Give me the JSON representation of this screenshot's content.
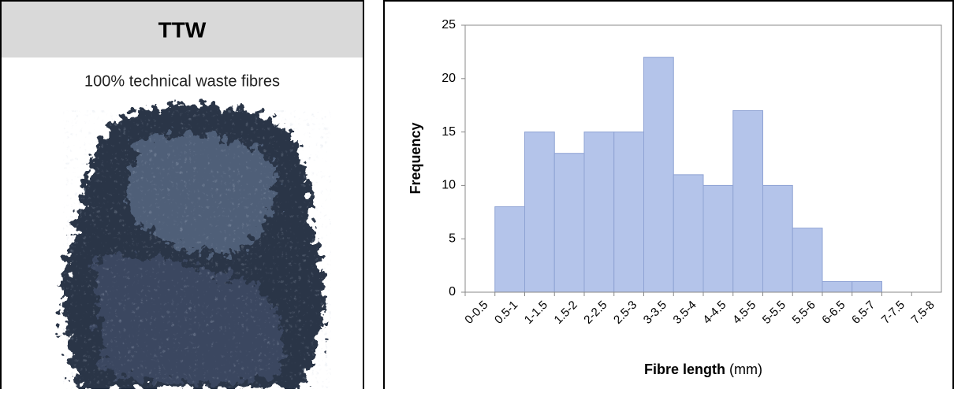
{
  "panel": {
    "title": "TTW",
    "caption": "100% technical waste fibres"
  },
  "chart_data": {
    "type": "bar",
    "categories": [
      "0-0.5",
      "0.5-1",
      "1-1.5",
      "1.5-2",
      "2-2.5",
      "2.5-3",
      "3-3.5",
      "3.5-4",
      "4-4.5",
      "4.5-5",
      "5-5.5",
      "5.5-6",
      "6-6.5",
      "6.5-7",
      "7-7.5",
      "7.5-8"
    ],
    "values": [
      0,
      8,
      15,
      13,
      15,
      15,
      22,
      11,
      10,
      17,
      10,
      6,
      1,
      1,
      0,
      0
    ],
    "color": "#b4c4ea",
    "ylabel": "Frequency",
    "xlabel": "Fibre length",
    "xlabel_unit": "(mm)",
    "ylim": [
      0,
      25
    ],
    "yticks": [
      0,
      5,
      10,
      15,
      20,
      25
    ],
    "grid": false
  }
}
